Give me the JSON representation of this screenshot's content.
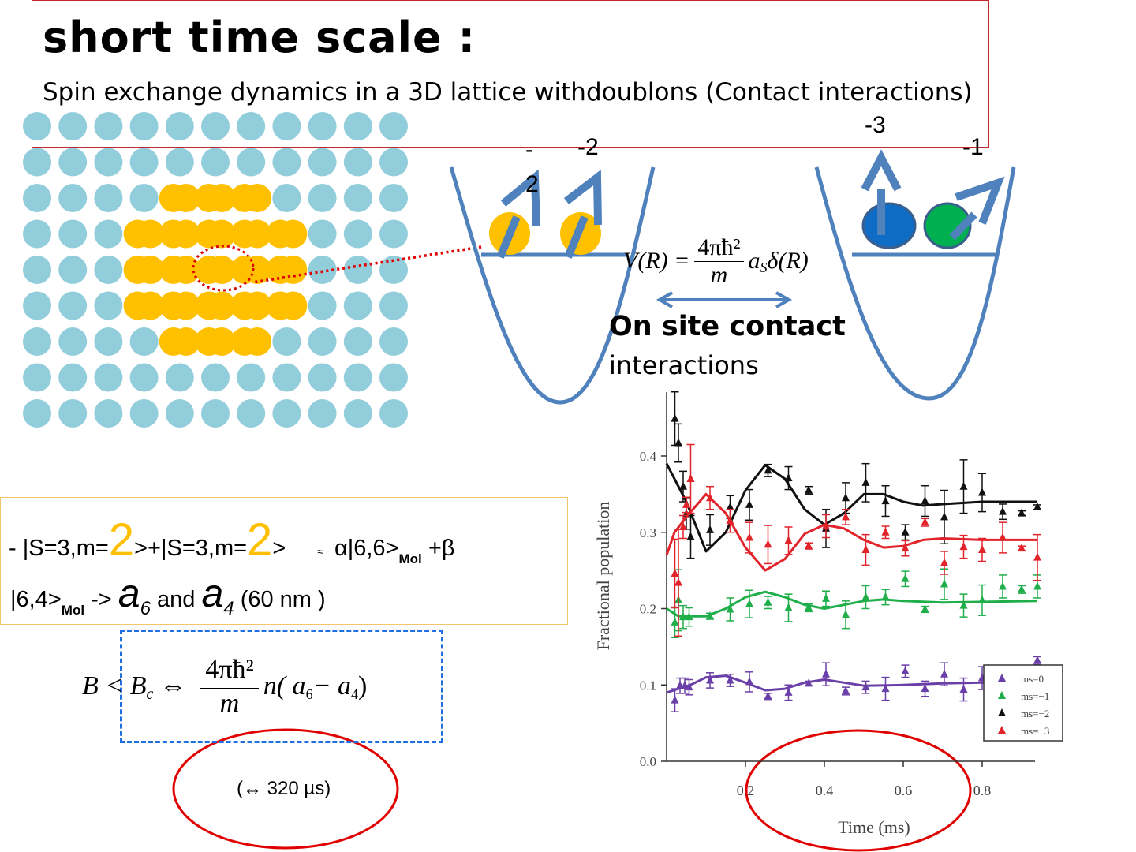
{
  "slide": {
    "title": "short time scale :",
    "subtitle_start": "Spin exchange dynamics in a 3D lattice with ",
    "subtitle_end": "doublons (Contact interactions)",
    "colors": {
      "lattice_site": "#92cddc",
      "doublon": "#ffc000",
      "well": "#4f81bd",
      "highlight_red": "#e00000",
      "title_border": "#c0282d"
    }
  },
  "wells": {
    "left_labels": [
      "-2",
      "-2"
    ],
    "right_labels": [
      "-3",
      "-1"
    ],
    "atoms_left": [
      "#ffc000",
      "#ffc000"
    ],
    "atoms_right": [
      "#0f6cc4",
      "#00b050"
    ],
    "potential": {
      "lhs": "V(R) =",
      "numerator": "4πħ²",
      "denominator": "m",
      "rhs_a": "a",
      "rhs_sub": "S",
      "rhs_delta": "δ(R)"
    },
    "caption_bold": "On site contact",
    "caption": "interactions"
  },
  "state_box": {
    "line1_a": "- |S=3,m=",
    "two": "2",
    "line1_b": ">+|S=3,m=",
    "line1_c": ">",
    "approx": "≈",
    "line1_d": "α|6,6>",
    "mol": "Mol",
    "line1_e": " +β",
    "line2_a": "|6,4>",
    "line2_b": " -> ",
    "a": "a",
    "sub6": "6",
    "and": " and ",
    "sub4": "4",
    "line2_c": " (60 nm )"
  },
  "criterion": {
    "lhs": "B < B",
    "lhs_sub": "c",
    "equiv": "⇔",
    "numerator": "4πħ²",
    "denominator": "m",
    "rhs": "n( a",
    "rhs_sub6": "6",
    "minus": " − a",
    "rhs_sub4": "4",
    "close": " )"
  },
  "timescale_note": "(↔ 320 µs)",
  "chart_data": {
    "type": "scatter",
    "xlabel": "Time (ms)",
    "ylabel": "Fractional population",
    "xlim": [
      0,
      0.94
    ],
    "ylim": [
      0,
      0.48
    ],
    "xticks": [
      "0.2",
      "0.4",
      "0.6",
      "0.8"
    ],
    "xtick_values": [
      0.2,
      0.4,
      0.6,
      0.8
    ],
    "yticks": [
      "0.0",
      "0.1",
      "0.2",
      "0.3",
      "0.4"
    ],
    "ytick_values": [
      0,
      0.1,
      0.2,
      0.3,
      0.4
    ],
    "grid": false,
    "legend_position": "bottom-right",
    "series": [
      {
        "name": "ms=0",
        "color": "#6a3fa8",
        "x": [
          0.021,
          0.034,
          0.046,
          0.057,
          0.11,
          0.161,
          0.21,
          0.257,
          0.309,
          0.36,
          0.404,
          0.454,
          0.505,
          0.555,
          0.605,
          0.655,
          0.704,
          0.753,
          0.8,
          0.94
        ],
        "y": [
          0.08,
          0.099,
          0.099,
          0.097,
          0.106,
          0.106,
          0.104,
          0.085,
          0.09,
          0.102,
          0.114,
          0.092,
          0.097,
          0.095,
          0.118,
          0.095,
          0.114,
          0.094,
          0.109,
          0.132
        ],
        "err": [
          0.015,
          0.01,
          0.01,
          0.01,
          0.01,
          0.008,
          0.013,
          0.004,
          0.01,
          0.003,
          0.015,
          0.005,
          0.008,
          0.015,
          0.008,
          0.01,
          0.015,
          0.015,
          0.015,
          0.005
        ],
        "fit_x": [
          0,
          0.03,
          0.06,
          0.1,
          0.15,
          0.2,
          0.25,
          0.3,
          0.35,
          0.4,
          0.45,
          0.5,
          0.6,
          0.7,
          0.8,
          0.94
        ],
        "fit_y": [
          0.09,
          0.095,
          0.1,
          0.11,
          0.112,
          0.103,
          0.093,
          0.095,
          0.103,
          0.107,
          0.103,
          0.099,
          0.1,
          0.102,
          0.103,
          0.103
        ]
      },
      {
        "name": "ms=−1",
        "color": "#1fae4a",
        "x": [
          0.021,
          0.03,
          0.042,
          0.057,
          0.11,
          0.161,
          0.21,
          0.257,
          0.309,
          0.36,
          0.404,
          0.454,
          0.505,
          0.555,
          0.605,
          0.655,
          0.704,
          0.753,
          0.8,
          0.852,
          0.9,
          0.94
        ],
        "y": [
          0.182,
          0.211,
          0.189,
          0.189,
          0.19,
          0.199,
          0.206,
          0.208,
          0.201,
          0.201,
          0.213,
          0.192,
          0.215,
          0.215,
          0.239,
          0.199,
          0.232,
          0.204,
          0.211,
          0.229,
          0.225,
          0.229
        ],
        "err": [
          0.02,
          0.04,
          0.015,
          0.012,
          0.004,
          0.015,
          0.018,
          0.008,
          0.018,
          0.005,
          0.01,
          0.018,
          0.015,
          0.01,
          0.01,
          0.004,
          0.02,
          0.015,
          0.02,
          0.015,
          0.005,
          0.015
        ],
        "fit_x": [
          0,
          0.03,
          0.1,
          0.15,
          0.2,
          0.25,
          0.3,
          0.35,
          0.4,
          0.45,
          0.5,
          0.55,
          0.6,
          0.7,
          0.94
        ],
        "fit_y": [
          0.2,
          0.19,
          0.19,
          0.2,
          0.215,
          0.222,
          0.215,
          0.205,
          0.2,
          0.205,
          0.21,
          0.212,
          0.21,
          0.208,
          0.21
        ]
      },
      {
        "name": "ms=−2",
        "color": "#111111",
        "x": [
          0.021,
          0.03,
          0.042,
          0.05,
          0.061,
          0.11,
          0.161,
          0.21,
          0.257,
          0.309,
          0.36,
          0.404,
          0.454,
          0.505,
          0.555,
          0.605,
          0.655,
          0.704,
          0.753,
          0.8,
          0.852,
          0.9,
          0.94
        ],
        "y": [
          0.449,
          0.417,
          0.36,
          0.324,
          0.294,
          0.303,
          0.333,
          0.336,
          0.381,
          0.371,
          0.355,
          0.305,
          0.345,
          0.365,
          0.341,
          0.3,
          0.341,
          0.32,
          0.36,
          0.352,
          0.327,
          0.325,
          0.333
        ],
        "err": [
          0.035,
          0.025,
          0.02,
          0.02,
          0.028,
          0.02,
          0.015,
          0.02,
          0.008,
          0.015,
          0.005,
          0.025,
          0.02,
          0.025,
          0.02,
          0.01,
          0.02,
          0.035,
          0.035,
          0.025,
          0.01,
          0.003,
          0.003
        ],
        "fit_x": [
          0,
          0.05,
          0.1,
          0.15,
          0.2,
          0.25,
          0.3,
          0.35,
          0.4,
          0.45,
          0.5,
          0.55,
          0.6,
          0.65,
          0.7,
          0.8,
          0.94
        ],
        "fit_y": [
          0.39,
          0.34,
          0.275,
          0.3,
          0.355,
          0.388,
          0.37,
          0.33,
          0.31,
          0.325,
          0.35,
          0.35,
          0.34,
          0.335,
          0.337,
          0.34,
          0.34
        ]
      },
      {
        "name": "ms=−3",
        "color": "#e2232a",
        "x": [
          0.021,
          0.03,
          0.042,
          0.05,
          0.061,
          0.11,
          0.161,
          0.21,
          0.257,
          0.309,
          0.36,
          0.404,
          0.454,
          0.505,
          0.555,
          0.605,
          0.655,
          0.704,
          0.753,
          0.8,
          0.852,
          0.9,
          0.94
        ],
        "y": [
          0.246,
          0.234,
          0.307,
          0.336,
          0.37,
          0.345,
          0.315,
          0.293,
          0.284,
          0.289,
          0.282,
          0.308,
          0.32,
          0.277,
          0.3,
          0.279,
          0.313,
          0.26,
          0.281,
          0.277,
          0.293,
          0.279,
          0.267
        ],
        "err": [
          0.045,
          0.07,
          0.015,
          0.01,
          0.045,
          0.015,
          0.015,
          0.02,
          0.025,
          0.018,
          0.004,
          0.015,
          0.01,
          0.02,
          0.008,
          0.01,
          0.005,
          0.015,
          0.015,
          0.015,
          0.02,
          0.003,
          0.03
        ],
        "fit_x": [
          0,
          0.02,
          0.05,
          0.1,
          0.15,
          0.2,
          0.25,
          0.3,
          0.35,
          0.4,
          0.45,
          0.5,
          0.55,
          0.6,
          0.65,
          0.7,
          0.8,
          0.94
        ],
        "fit_y": [
          0.27,
          0.3,
          0.32,
          0.35,
          0.325,
          0.28,
          0.25,
          0.265,
          0.298,
          0.31,
          0.305,
          0.29,
          0.28,
          0.282,
          0.29,
          0.292,
          0.29,
          0.29
        ]
      }
    ]
  }
}
